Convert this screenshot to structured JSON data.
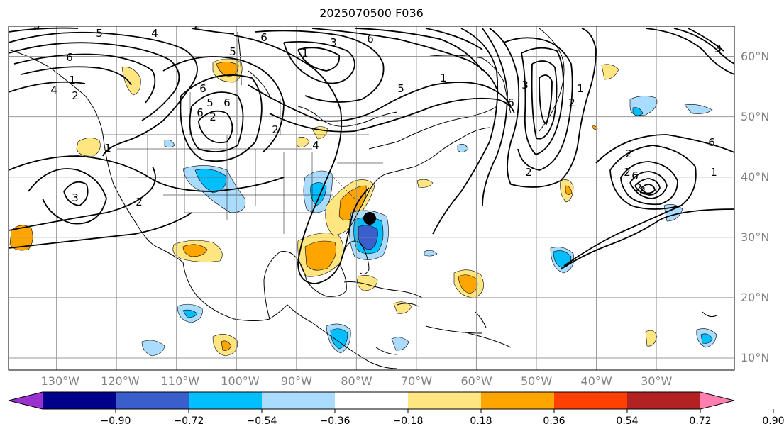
{
  "title": "2025070500 F036",
  "map": {
    "lon_range": [
      -138,
      -17
    ],
    "lat_range": [
      8,
      65
    ],
    "lon_labels": [
      "130°W",
      "120°W",
      "110°W",
      "100°W",
      "90°W",
      "80°W",
      "70°W",
      "60°W",
      "50°W",
      "40°W",
      "30°W"
    ],
    "lat_labels": [
      "10°N",
      "20°N",
      "30°N",
      "40°N",
      "50°N",
      "60°N"
    ],
    "grid": true,
    "marker": {
      "lon": -80,
      "lat": 33,
      "color": "#000000"
    }
  },
  "colorbar": {
    "ticks": [
      "−0.90",
      "−0.72",
      "−0.54",
      "−0.36",
      "−0.18",
      "0.18",
      "0.36",
      "0.54",
      "0.72",
      "0.90"
    ],
    "colors": [
      "#9a30d0",
      "#00008b",
      "#3a5fcd",
      "#00bfff",
      "#aadcff",
      "#ffffff",
      "#ffe680",
      "#ffa500",
      "#ff4000",
      "#b22222",
      "#ff80b0"
    ]
  },
  "contour_labels": [
    "3",
    "5",
    "4",
    "2",
    "6",
    "1",
    "4",
    "2",
    "6",
    "5",
    "6",
    "3",
    "2",
    "1",
    "2",
    "6",
    "5",
    "6",
    "1",
    "2",
    "4",
    "3",
    "6",
    "5",
    "1",
    "6",
    "3",
    "2",
    "1",
    "2",
    "2",
    "6",
    "1",
    "2",
    "2",
    "4",
    "6",
    "3"
  ]
}
